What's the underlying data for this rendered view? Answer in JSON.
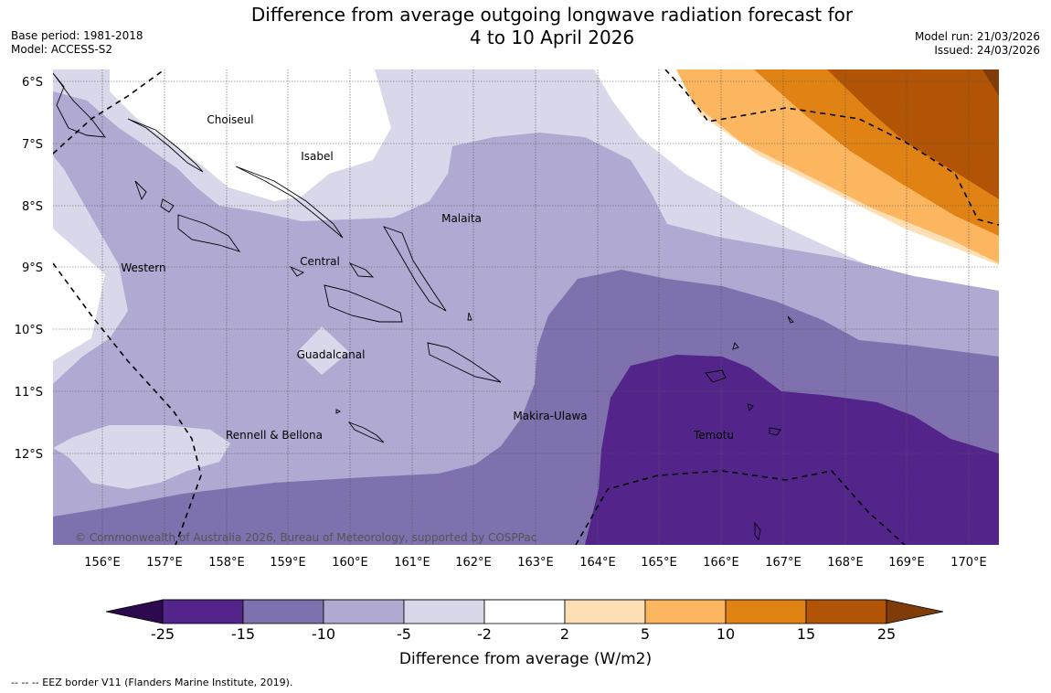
{
  "title": {
    "line1": "Difference from average outgoing longwave radiation forecast for",
    "line2": "4 to 10 April 2026"
  },
  "meta": {
    "base_period": "Base period: 1981-2018",
    "model": "Model: ACCESS-S2",
    "model_run": "Model run: 21/03/2026",
    "issued": "Issued: 24/03/2026"
  },
  "axes": {
    "lat_ticks": [
      "6°S",
      "7°S",
      "8°S",
      "9°S",
      "10°S",
      "11°S",
      "12°S"
    ],
    "lon_ticks": [
      "156°E",
      "157°E",
      "158°E",
      "159°E",
      "160°E",
      "161°E",
      "162°E",
      "163°E",
      "164°E",
      "165°E",
      "166°E",
      "167°E",
      "168°E",
      "169°E",
      "170°E"
    ]
  },
  "regions": [
    "Choiseul",
    "Isabel",
    "Malaita",
    "Western",
    "Central",
    "Guadalcanal",
    "Makira-Ulawa",
    "Rennell & Bellona",
    "Temotu"
  ],
  "copyright": "© Commonwealth of Australia 2026, Bureau of Meteorology, supported by COSPPac",
  "colorbar": {
    "ticks": [
      "-25",
      "-15",
      "-10",
      "-5",
      "-2",
      "2",
      "5",
      "10",
      "15",
      "25"
    ],
    "colors": [
      "#2d0a4e",
      "#53258a",
      "#7f70ae",
      "#b0a9d2",
      "#d8d8ea",
      "#ffffff",
      "#fedfb4",
      "#fcb660",
      "#e08214",
      "#b25405",
      "#7f3b08"
    ],
    "title": "Difference from average (W/m2)"
  },
  "legend": {
    "eez": "--  --  -- EEZ border V11 (Flanders Marine Institute, 2019)."
  }
}
